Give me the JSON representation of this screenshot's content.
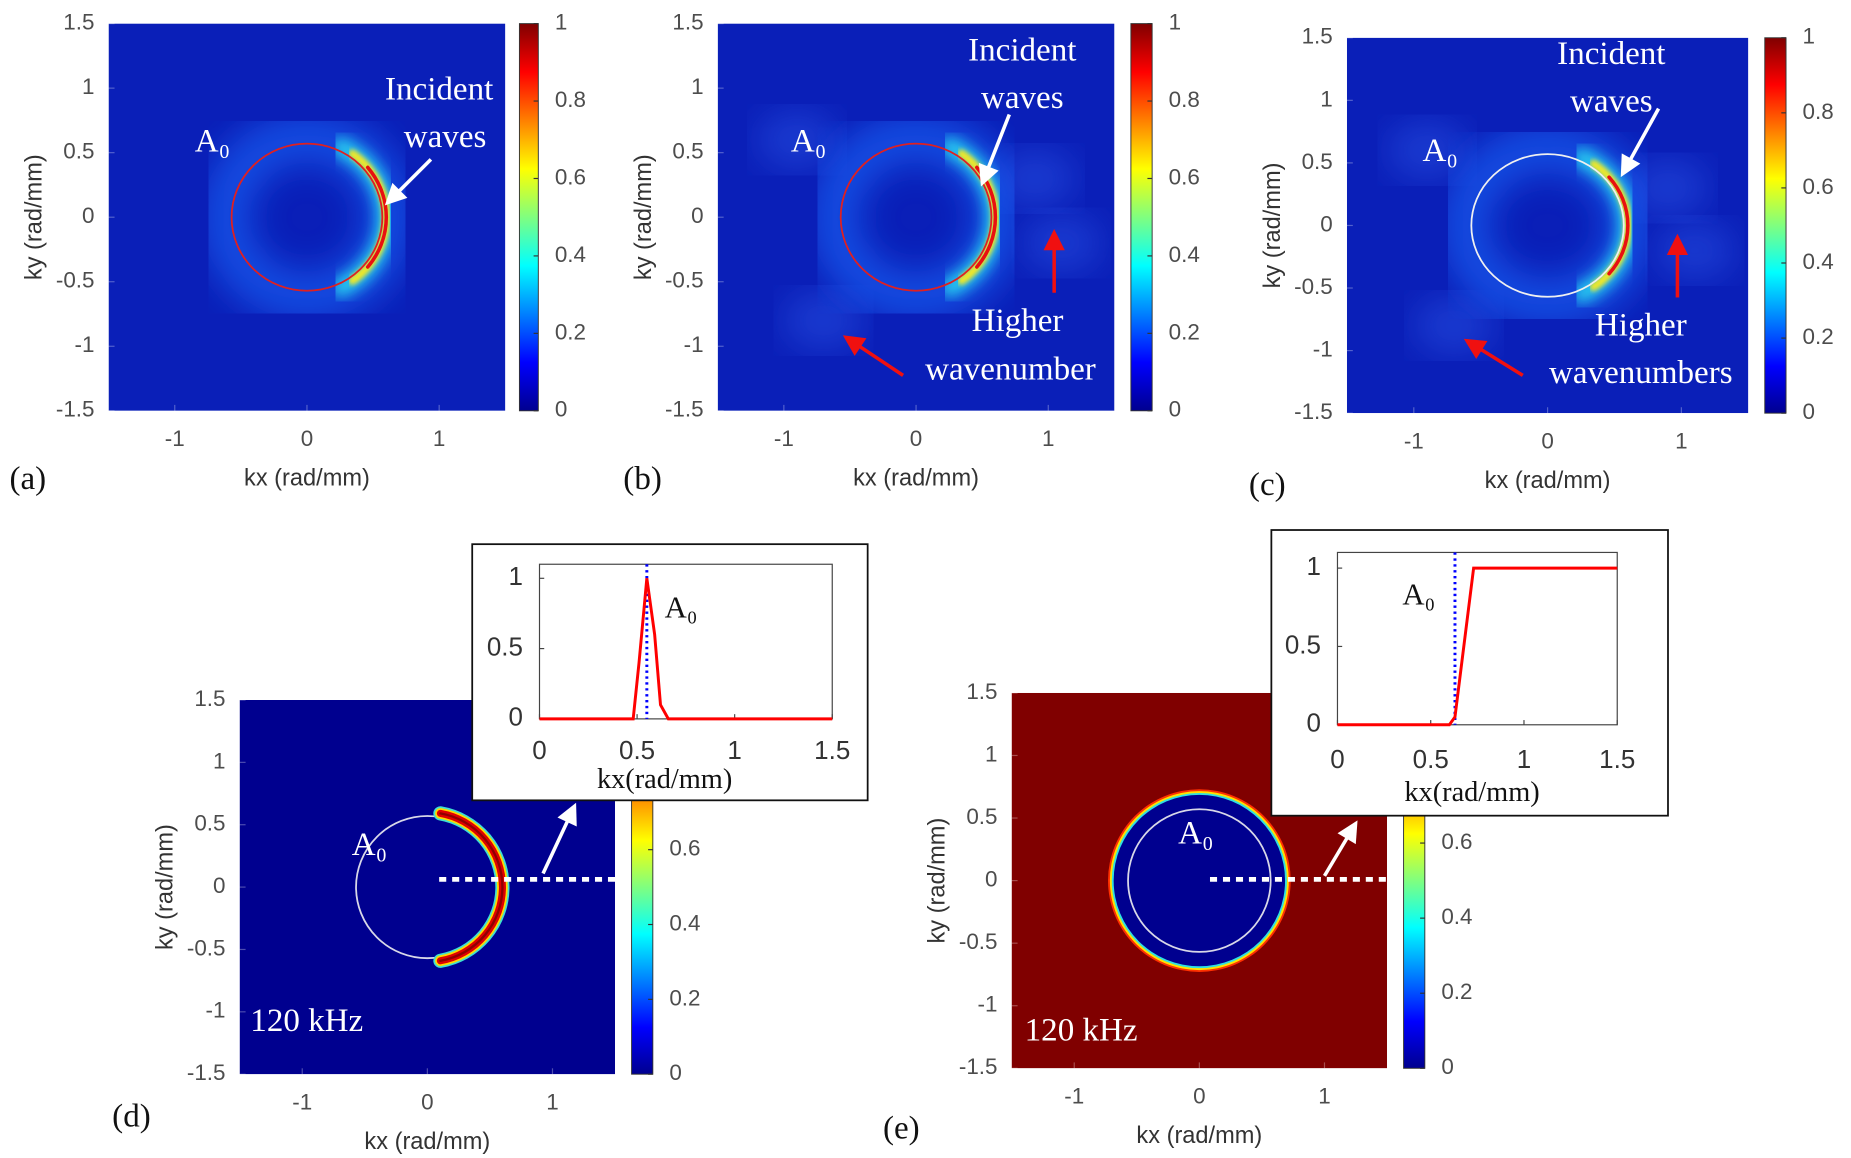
{
  "chart_data": [
    {
      "type": "heatmap",
      "panel_label": "(a)",
      "xlabel": "kx (rad/mm)",
      "ylabel": "ky (rad/mm)",
      "xlim": [
        -1.5,
        1.5
      ],
      "ylim": [
        -1.5,
        1.5
      ],
      "xticks": [
        -1,
        0,
        1
      ],
      "yticks": [
        -1.5,
        -1,
        -0.5,
        0,
        0.5,
        1,
        1.5
      ],
      "colorbar": {
        "clim": [
          0,
          1
        ],
        "ticks": [
          0,
          0.2,
          0.4,
          0.6,
          0.8,
          1
        ]
      },
      "annotations": [
        "A₀",
        "Incident",
        "waves"
      ]
    },
    {
      "type": "heatmap",
      "panel_label": "(b)",
      "xlabel": "kx (rad/mm)",
      "ylabel": "ky (rad/mm)",
      "xlim": [
        -1.5,
        1.5
      ],
      "ylim": [
        -1.5,
        1.5
      ],
      "xticks": [
        -1,
        0,
        1
      ],
      "yticks": [
        -1.5,
        -1,
        -0.5,
        0,
        0.5,
        1,
        1.5
      ],
      "colorbar": {
        "clim": [
          0,
          1
        ],
        "ticks": [
          0,
          0.2,
          0.4,
          0.6,
          0.8,
          1
        ]
      },
      "annotations": [
        "A₀",
        "Incident",
        "waves",
        "Higher",
        "wavenumber"
      ]
    },
    {
      "type": "heatmap",
      "panel_label": "(c)",
      "xlabel": "kx (rad/mm)",
      "ylabel": "ky (rad/mm)",
      "xlim": [
        -1.5,
        1.5
      ],
      "ylim": [
        -1.5,
        1.5
      ],
      "xticks": [
        -1,
        0,
        1
      ],
      "yticks": [
        -1.5,
        -1,
        -0.5,
        0,
        0.5,
        1,
        1.5
      ],
      "colorbar": {
        "clim": [
          0,
          1
        ],
        "ticks": [
          0,
          0.2,
          0.4,
          0.6,
          0.8,
          1
        ]
      },
      "annotations": [
        "A₀",
        "Incident",
        "waves",
        "Higher",
        "wavenumbers"
      ]
    },
    {
      "type": "heatmap",
      "panel_label": "(d)",
      "xlabel": "kx (rad/mm)",
      "ylabel": "ky (rad/mm)",
      "xlim": [
        -1.5,
        1.5
      ],
      "ylim": [
        -1.5,
        1.5
      ],
      "xticks": [
        -1,
        0,
        1
      ],
      "yticks": [
        -1.5,
        -1,
        -0.5,
        0,
        0.5,
        1,
        1.5
      ],
      "colorbar": {
        "clim": [
          0,
          1
        ],
        "ticks": [
          0,
          0.2,
          0.4,
          0.6
        ]
      },
      "annotations": [
        "A₀",
        "120 kHz"
      ]
    },
    {
      "type": "heatmap",
      "panel_label": "(e)",
      "xlabel": "kx (rad/mm)",
      "ylabel": "ky (rad/mm)",
      "xlim": [
        -1.5,
        1.5
      ],
      "ylim": [
        -1.5,
        1.5
      ],
      "xticks": [
        -1,
        0,
        1
      ],
      "yticks": [
        -1.5,
        -1,
        -0.5,
        0,
        0.5,
        1,
        1.5
      ],
      "colorbar": {
        "clim": [
          0,
          1
        ],
        "ticks": [
          0,
          0.2,
          0.4,
          0.6
        ]
      },
      "annotations": [
        "A₀",
        "120 kHz"
      ]
    },
    {
      "type": "line",
      "xlabel": "kx(rad/mm)",
      "xlim": [
        0,
        1.5
      ],
      "ylim": [
        0,
        1.1
      ],
      "xticks": [
        0,
        0.5,
        1,
        1.5
      ],
      "yticks": [
        0,
        0.5,
        1
      ],
      "series": [
        {
          "color": "#ff0000",
          "x": [
            0,
            0.48,
            0.51,
            0.55,
            0.59,
            0.62,
            0.66,
            1.5
          ],
          "values": [
            0,
            0,
            0.4,
            1,
            0.6,
            0.1,
            0,
            0
          ]
        }
      ],
      "vline": 0.55,
      "vline_color": "#0000ff",
      "annotations": [
        "A₀"
      ]
    },
    {
      "type": "line",
      "xlabel": "kx(rad/mm)",
      "xlim": [
        0,
        1.5
      ],
      "ylim": [
        0,
        1.1
      ],
      "xticks": [
        0,
        0.5,
        1,
        1.5
      ],
      "yticks": [
        0,
        0.5,
        1
      ],
      "series": [
        {
          "color": "#ff0000",
          "x": [
            0,
            0.6,
            0.63,
            0.73,
            1.5
          ],
          "values": [
            0,
            0,
            0.05,
            1,
            1
          ]
        }
      ],
      "vline": 0.63,
      "vline_color": "#0000ff",
      "annotations": [
        "A₀"
      ]
    }
  ]
}
